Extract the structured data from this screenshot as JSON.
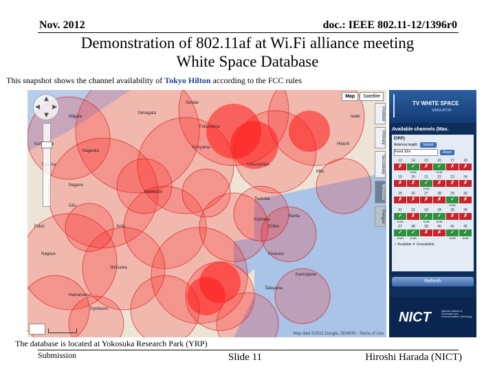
{
  "header": {
    "date": "Nov. 2012",
    "doc_id": "doc.: IEEE 802.11-12/1396r0"
  },
  "title": {
    "line1": "Demonstration of 802.11af at Wi.Fi alliance meeting",
    "line2": "White Space Database"
  },
  "caption": {
    "before": "This snapshot shows the channel availability of ",
    "highlight": "Tokyo Hilton",
    "after": " according to the FCC rules"
  },
  "map": {
    "type_buttons": [
      "Map",
      "Satellite"
    ],
    "copyright": "Map data ©2012 Google, ZENRIN - Terms of Use",
    "coverage_color": "#ff1a1a",
    "labels": [
      "Sendai",
      "Yamagata",
      "Niigata",
      "Fukushima",
      "Koriyama",
      "Nagaoka",
      "Utsunomiya",
      "Mito",
      "Nagano",
      "Maebashi",
      "Tsukuba",
      "Chiba",
      "Kashiwa",
      "Narita",
      "Kofu",
      "Shizuoka",
      "Hamamatsu",
      "Toyohashi",
      "Nagoya",
      "Kisarazu",
      "Tateyama",
      "Kamogawa",
      "Gifu",
      "Toyama",
      "Kanazawa",
      "Fukui",
      "Hitachi",
      "Iwaki"
    ]
  },
  "side_tabs": [
    "Position",
    "Primary",
    "Secondary",
    "Wireless",
    "Ranges"
  ],
  "panel": {
    "app_name": "TV WHITE SPACE",
    "app_sub": "SIMULATOR",
    "available_title": "Available channels (Max.",
    "eirp_label": "EIRP)",
    "antenna_label": "Antenna height:",
    "antenna_value": "Fixed 10m",
    "submit_label": "Submit",
    "reset_label": "Reset",
    "channels": [
      {
        "ch": "13",
        "ok": false,
        "eirp": ""
      },
      {
        "ch": "14",
        "ok": true,
        "eirp": "40dB"
      },
      {
        "ch": "15",
        "ok": false,
        "eirp": ""
      },
      {
        "ch": "16",
        "ok": true,
        "eirp": "40dB"
      },
      {
        "ch": "17",
        "ok": false,
        "eirp": ""
      },
      {
        "ch": "18",
        "ok": false,
        "eirp": ""
      },
      {
        "ch": "19",
        "ok": false,
        "eirp": ""
      },
      {
        "ch": "20",
        "ok": false,
        "eirp": ""
      },
      {
        "ch": "21",
        "ok": true,
        "eirp": "40dB"
      },
      {
        "ch": "22",
        "ok": false,
        "eirp": ""
      },
      {
        "ch": "23",
        "ok": false,
        "eirp": ""
      },
      {
        "ch": "24",
        "ok": false,
        "eirp": ""
      },
      {
        "ch": "25",
        "ok": false,
        "eirp": ""
      },
      {
        "ch": "26",
        "ok": false,
        "eirp": ""
      },
      {
        "ch": "27",
        "ok": false,
        "eirp": ""
      },
      {
        "ch": "28",
        "ok": false,
        "eirp": ""
      },
      {
        "ch": "29",
        "ok": true,
        "eirp": "40dB"
      },
      {
        "ch": "30",
        "ok": false,
        "eirp": ""
      },
      {
        "ch": "31",
        "ok": true,
        "eirp": "40dB"
      },
      {
        "ch": "32",
        "ok": false,
        "eirp": ""
      },
      {
        "ch": "33",
        "ok": true,
        "eirp": "40dB"
      },
      {
        "ch": "34",
        "ok": true,
        "eirp": "40dB"
      },
      {
        "ch": "35",
        "ok": false,
        "eirp": ""
      },
      {
        "ch": "36",
        "ok": false,
        "eirp": ""
      },
      {
        "ch": "37",
        "ok": true,
        "eirp": "40dB"
      },
      {
        "ch": "38",
        "ok": true,
        "eirp": "40dB"
      },
      {
        "ch": "39",
        "ok": false,
        "eirp": ""
      },
      {
        "ch": "40",
        "ok": false,
        "eirp": ""
      },
      {
        "ch": "41",
        "ok": true,
        "eirp": "40dB"
      },
      {
        "ch": "42",
        "ok": true,
        "eirp": "40dB"
      }
    ],
    "legend": "✓ Available  ✗ Unavailable",
    "refresh_label": "Refresh",
    "nict_logo": "NICT",
    "nict_text": "National Institute of Information and Communications Technology"
  },
  "footer": {
    "note": "The database is located at Yokosuka Research Park (YRP)",
    "submission": "Submission",
    "slide": "Slide 11",
    "author": "Hiroshi Harada (NICT)"
  }
}
